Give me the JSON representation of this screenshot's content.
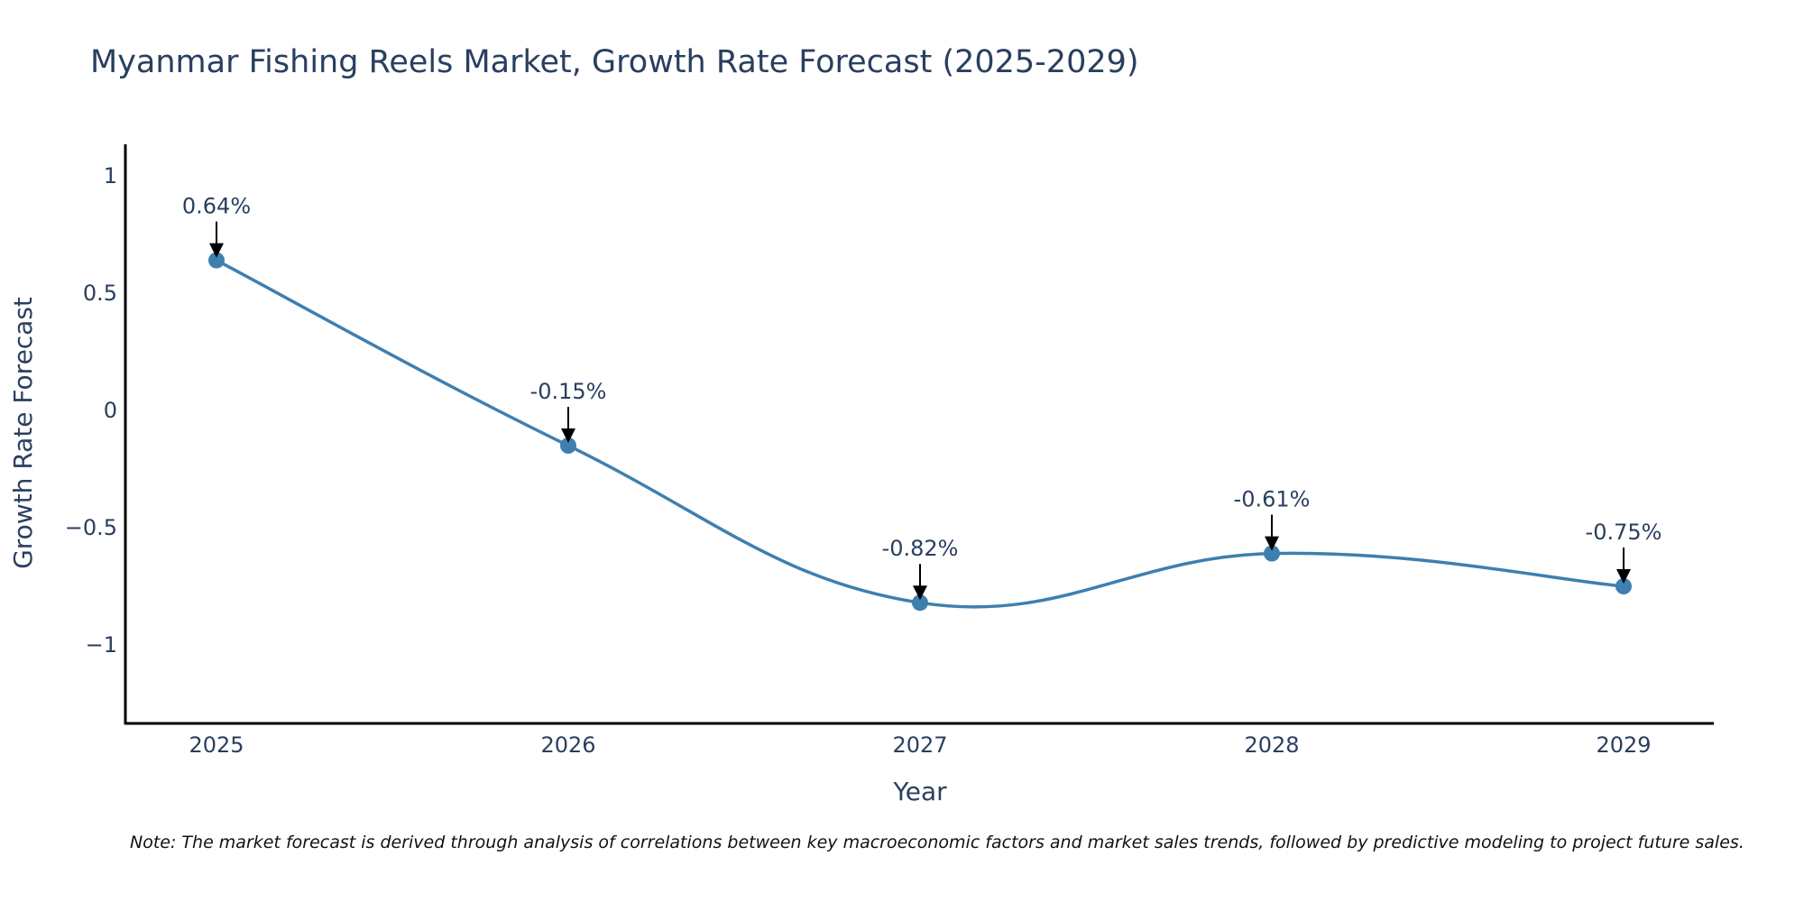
{
  "chart_data": {
    "type": "line",
    "title": "Myanmar Fishing Reels Market, Growth Rate Forecast (2025-2029)",
    "xlabel": "Year",
    "ylabel": "Growth Rate Forecast",
    "categories": [
      "2025",
      "2026",
      "2027",
      "2028",
      "2029"
    ],
    "series": [
      {
        "name": "Growth Rate Forecast",
        "values": [
          0.64,
          -0.15,
          -0.82,
          -0.61,
          -0.75
        ],
        "labels": [
          "0.64%",
          "-0.15%",
          "-0.82%",
          "-0.61%",
          "-0.75%"
        ]
      }
    ],
    "ylim": [
      -1.33,
      1.12
    ],
    "y_ticks": [
      1,
      0.5,
      0,
      -0.5,
      -1
    ],
    "y_tick_labels": [
      "1",
      "0.5",
      "0",
      "−0.5",
      "−1"
    ],
    "grid": false,
    "line_color": "#3f7faf",
    "marker_color": "#3f7faf",
    "annotation_arrow_color": "#000000",
    "note": "Note: The market forecast is derived through analysis of correlations between key macroeconomic factors and market sales trends, followed by predictive modeling to project future sales."
  }
}
